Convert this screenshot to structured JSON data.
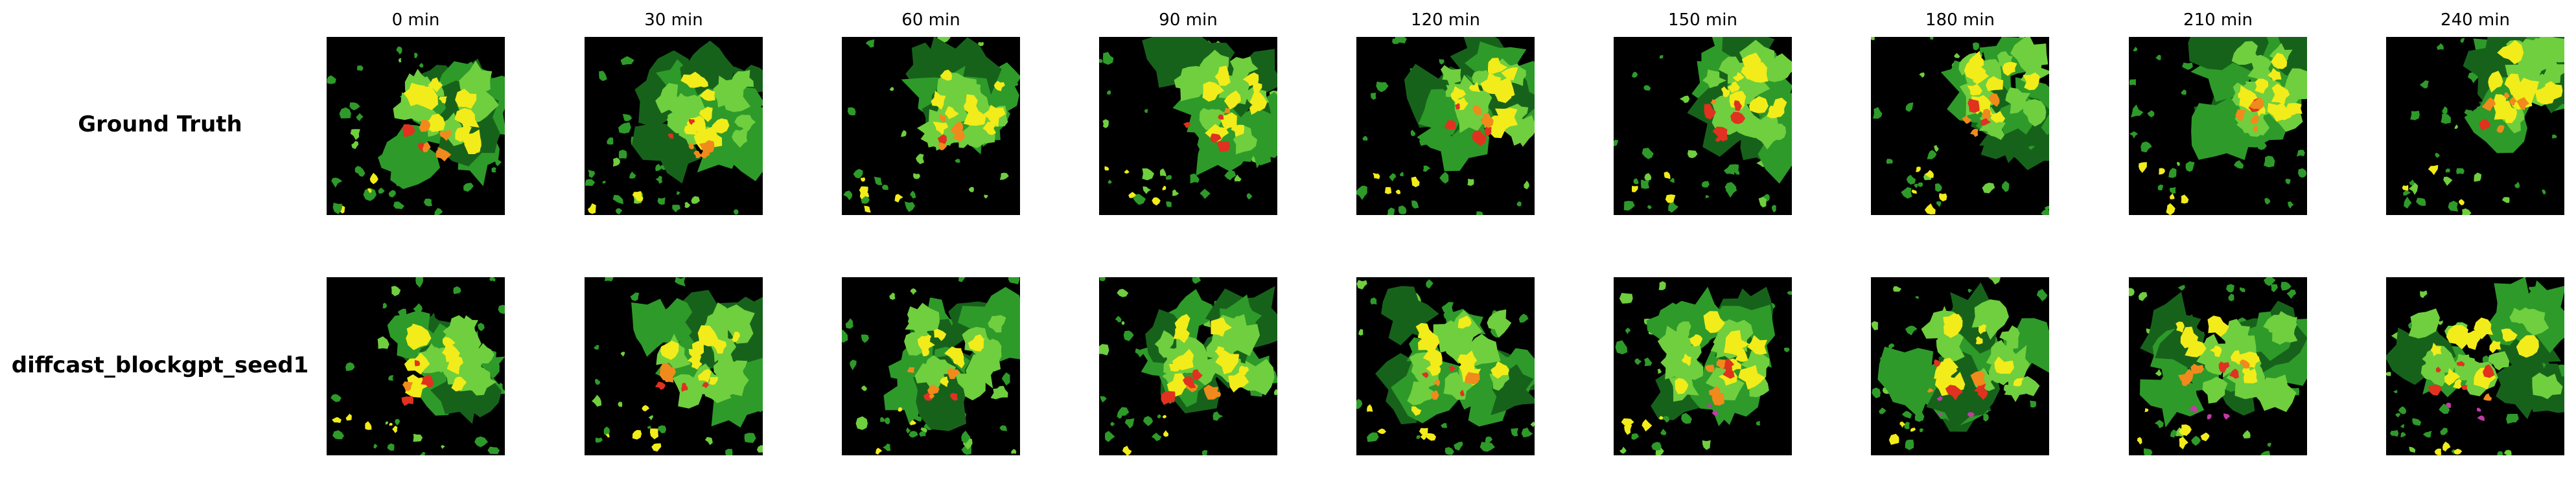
{
  "figure": {
    "time_labels": [
      "0 min",
      "30 min",
      "60 min",
      "90 min",
      "120 min",
      "150 min",
      "180 min",
      "210 min",
      "240 min"
    ],
    "rows": [
      {
        "label": "Ground Truth"
      },
      {
        "label": "diffcast_blockgpt_seed1"
      }
    ],
    "radar_colors": {
      "background": "#000000",
      "light_green": "#6fcf3f",
      "green": "#2e9a2a",
      "dark_green": "#17621b",
      "yellow": "#f2ec1a",
      "orange": "#f08a1c",
      "red": "#e0321f",
      "magenta": "#c43aa8"
    }
  }
}
